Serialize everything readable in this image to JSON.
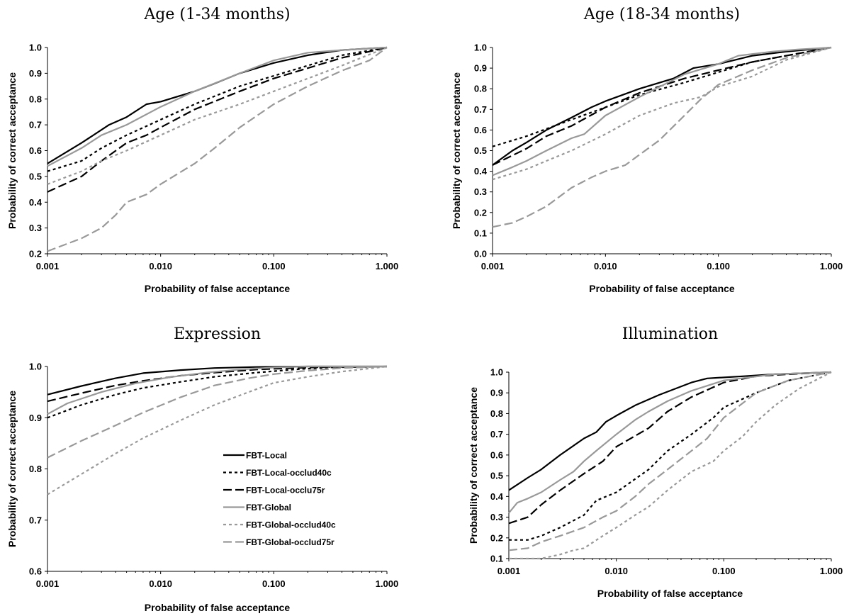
{
  "styles": {
    "FBT-Local": {
      "color": "#000000",
      "dash": ""
    },
    "FBT-Local-occlud40c": {
      "color": "#000000",
      "dash": "4,4"
    },
    "FBT-Local-occlu75r": {
      "color": "#000000",
      "dash": "12,5"
    },
    "FBT-Global": {
      "color": "#999999",
      "dash": ""
    },
    "FBT-Global-occlud40c": {
      "color": "#999999",
      "dash": "4,4"
    },
    "FBT-Global-occlud75r": {
      "color": "#999999",
      "dash": "12,5"
    }
  },
  "chart_data": [
    {
      "type": "line",
      "title": "Age (1-34 months)",
      "xlabel": "Probability of false acceptance",
      "ylabel": "Probability of correct acceptance",
      "xscale": "log",
      "xlim": [
        0.001,
        1.0
      ],
      "ylim": [
        0.2,
        1.0
      ],
      "xticks": [
        "0.001",
        "0.010",
        "0.100",
        "1.000"
      ],
      "yticks": [
        "0.2",
        "0.3",
        "0.4",
        "0.5",
        "0.6",
        "0.7",
        "0.8",
        "0.9",
        "1.0"
      ],
      "series": [
        {
          "name": "FBT-Local",
          "x": [
            0.001,
            0.002,
            0.0035,
            0.005,
            0.0075,
            0.01,
            0.02,
            0.03,
            0.05,
            0.1,
            0.2,
            0.4,
            1.0
          ],
          "y": [
            0.55,
            0.63,
            0.7,
            0.73,
            0.78,
            0.79,
            0.83,
            0.86,
            0.9,
            0.94,
            0.97,
            0.99,
            1.0
          ]
        },
        {
          "name": "FBT-Local-occlud40c",
          "x": [
            0.001,
            0.002,
            0.003,
            0.005,
            0.01,
            0.02,
            0.05,
            0.1,
            0.2,
            0.4,
            1.0
          ],
          "y": [
            0.52,
            0.56,
            0.61,
            0.66,
            0.72,
            0.78,
            0.85,
            0.89,
            0.93,
            0.97,
            1.0
          ]
        },
        {
          "name": "FBT-Local-occlu75r",
          "x": [
            0.001,
            0.002,
            0.003,
            0.005,
            0.0075,
            0.01,
            0.02,
            0.05,
            0.1,
            0.2,
            0.4,
            1.0
          ],
          "y": [
            0.44,
            0.5,
            0.56,
            0.63,
            0.66,
            0.69,
            0.76,
            0.83,
            0.88,
            0.92,
            0.96,
            1.0
          ]
        },
        {
          "name": "FBT-Global",
          "x": [
            0.001,
            0.002,
            0.003,
            0.005,
            0.01,
            0.02,
            0.05,
            0.1,
            0.2,
            0.4,
            1.0
          ],
          "y": [
            0.54,
            0.61,
            0.66,
            0.7,
            0.77,
            0.83,
            0.9,
            0.95,
            0.98,
            0.99,
            1.0
          ]
        },
        {
          "name": "FBT-Global-occlud40c",
          "x": [
            0.001,
            0.002,
            0.003,
            0.005,
            0.01,
            0.02,
            0.05,
            0.1,
            0.2,
            0.4,
            1.0
          ],
          "y": [
            0.47,
            0.52,
            0.56,
            0.6,
            0.66,
            0.72,
            0.78,
            0.83,
            0.88,
            0.93,
            1.0
          ]
        },
        {
          "name": "FBT-Global-occlud75r",
          "x": [
            0.001,
            0.002,
            0.003,
            0.004,
            0.005,
            0.0075,
            0.01,
            0.02,
            0.03,
            0.05,
            0.1,
            0.2,
            0.4,
            0.7,
            1.0
          ],
          "y": [
            0.21,
            0.26,
            0.3,
            0.35,
            0.4,
            0.43,
            0.47,
            0.55,
            0.61,
            0.69,
            0.78,
            0.85,
            0.91,
            0.95,
            1.0
          ]
        }
      ]
    },
    {
      "type": "line",
      "title": "Age (18-34 months)",
      "xlabel": "Probability of false acceptance",
      "ylabel": "Probability of correct acceptance",
      "xscale": "log",
      "xlim": [
        0.001,
        1.0
      ],
      "ylim": [
        0.0,
        1.0
      ],
      "xticks": [
        "0.001",
        "0.010",
        "0.100",
        "1.000"
      ],
      "yticks": [
        "0.0",
        "0.1",
        "0.2",
        "0.3",
        "0.4",
        "0.5",
        "0.6",
        "0.7",
        "0.8",
        "0.9",
        "1.0"
      ],
      "series": [
        {
          "name": "FBT-Local",
          "x": [
            0.001,
            0.0015,
            0.002,
            0.003,
            0.005,
            0.0075,
            0.01,
            0.02,
            0.04,
            0.06,
            0.1,
            0.2,
            0.4,
            1.0
          ],
          "y": [
            0.43,
            0.5,
            0.54,
            0.6,
            0.66,
            0.71,
            0.74,
            0.8,
            0.85,
            0.9,
            0.92,
            0.96,
            0.98,
            1.0
          ]
        },
        {
          "name": "FBT-Local-occlud40c",
          "x": [
            0.001,
            0.002,
            0.005,
            0.01,
            0.02,
            0.05,
            0.1,
            0.2,
            0.5,
            1.0
          ],
          "y": [
            0.52,
            0.57,
            0.65,
            0.71,
            0.77,
            0.83,
            0.88,
            0.93,
            0.97,
            1.0
          ]
        },
        {
          "name": "FBT-Local-occlu75r",
          "x": [
            0.001,
            0.002,
            0.003,
            0.005,
            0.01,
            0.02,
            0.05,
            0.1,
            0.2,
            0.5,
            1.0
          ],
          "y": [
            0.43,
            0.51,
            0.57,
            0.62,
            0.71,
            0.78,
            0.85,
            0.89,
            0.93,
            0.97,
            1.0
          ]
        },
        {
          "name": "FBT-Global",
          "x": [
            0.001,
            0.0015,
            0.002,
            0.003,
            0.005,
            0.0065,
            0.01,
            0.02,
            0.05,
            0.1,
            0.15,
            0.3,
            0.5,
            1.0
          ],
          "y": [
            0.38,
            0.42,
            0.45,
            0.5,
            0.56,
            0.58,
            0.67,
            0.76,
            0.87,
            0.92,
            0.96,
            0.98,
            0.99,
            1.0
          ]
        },
        {
          "name": "FBT-Global-occlud40c",
          "x": [
            0.001,
            0.002,
            0.003,
            0.005,
            0.01,
            0.02,
            0.04,
            0.07,
            0.1,
            0.2,
            0.4,
            1.0
          ],
          "y": [
            0.36,
            0.41,
            0.45,
            0.5,
            0.58,
            0.67,
            0.73,
            0.76,
            0.81,
            0.86,
            0.94,
            1.0
          ]
        },
        {
          "name": "FBT-Global-occlud75r",
          "x": [
            0.001,
            0.0015,
            0.002,
            0.003,
            0.005,
            0.0075,
            0.01,
            0.015,
            0.02,
            0.03,
            0.05,
            0.07,
            0.1,
            0.2,
            0.4,
            1.0
          ],
          "y": [
            0.13,
            0.15,
            0.18,
            0.23,
            0.32,
            0.37,
            0.4,
            0.43,
            0.48,
            0.55,
            0.67,
            0.75,
            0.82,
            0.89,
            0.95,
            1.0
          ]
        }
      ]
    },
    {
      "type": "line",
      "title": "Expression",
      "xlabel": "Probability of false acceptance",
      "ylabel": "Probability of correct acceptance",
      "xscale": "log",
      "xlim": [
        0.001,
        1.0
      ],
      "ylim": [
        0.6,
        1.0
      ],
      "xticks": [
        "0.001",
        "0.010",
        "0.100",
        "1.000"
      ],
      "yticks": [
        "0.6",
        "0.7",
        "0.8",
        "0.9",
        "1.0"
      ],
      "series": [
        {
          "name": "FBT-Local",
          "x": [
            0.001,
            0.002,
            0.004,
            0.007,
            0.015,
            0.03,
            0.07,
            0.2,
            1.0
          ],
          "y": [
            0.945,
            0.962,
            0.977,
            0.987,
            0.993,
            0.997,
            0.999,
            1.0,
            1.0
          ]
        },
        {
          "name": "FBT-Local-occlud40c",
          "x": [
            0.001,
            0.002,
            0.004,
            0.007,
            0.015,
            0.03,
            0.07,
            0.15,
            0.3,
            1.0
          ],
          "y": [
            0.9,
            0.925,
            0.945,
            0.958,
            0.97,
            0.98,
            0.988,
            0.994,
            0.998,
            1.0
          ]
        },
        {
          "name": "FBT-Local-occlu75r",
          "x": [
            0.001,
            0.002,
            0.004,
            0.007,
            0.015,
            0.03,
            0.07,
            0.15,
            0.3,
            1.0
          ],
          "y": [
            0.932,
            0.948,
            0.963,
            0.972,
            0.982,
            0.988,
            0.994,
            0.997,
            0.999,
            1.0
          ]
        },
        {
          "name": "FBT-Global",
          "x": [
            0.001,
            0.0015,
            0.003,
            0.006,
            0.012,
            0.025,
            0.05,
            0.1,
            0.2,
            1.0
          ],
          "y": [
            0.907,
            0.928,
            0.95,
            0.967,
            0.979,
            0.988,
            0.994,
            0.998,
            1.0,
            1.0
          ]
        },
        {
          "name": "FBT-Global-occlud40c",
          "x": [
            0.001,
            0.002,
            0.004,
            0.007,
            0.015,
            0.03,
            0.06,
            0.1,
            0.2,
            0.4,
            1.0
          ],
          "y": [
            0.75,
            0.79,
            0.83,
            0.86,
            0.895,
            0.925,
            0.95,
            0.968,
            0.98,
            0.99,
            1.0
          ]
        },
        {
          "name": "FBT-Global-occlud75r",
          "x": [
            0.001,
            0.002,
            0.004,
            0.007,
            0.015,
            0.03,
            0.06,
            0.1,
            0.2,
            0.4,
            1.0
          ],
          "y": [
            0.822,
            0.855,
            0.885,
            0.91,
            0.94,
            0.963,
            0.977,
            0.985,
            0.992,
            0.997,
            1.0
          ]
        }
      ],
      "legend": [
        "FBT-Local",
        "FBT-Local-occlud40c",
        "FBT-Local-occlu75r",
        "FBT-Global",
        "FBT-Global-occlud40c",
        "FBT-Global-occlud75r"
      ]
    },
    {
      "type": "line",
      "title": "Illumination",
      "xlabel": "Probability of false acceptance",
      "ylabel": "Probability of correct acceptance",
      "xscale": "log",
      "xlim": [
        0.001,
        1.0
      ],
      "ylim": [
        0.1,
        1.0
      ],
      "xticks": [
        "0.001",
        "0.010",
        "0.100",
        "1.000"
      ],
      "yticks": [
        "0.1",
        "0.2",
        "0.3",
        "0.4",
        "0.5",
        "0.6",
        "0.7",
        "0.8",
        "0.9",
        "1.0"
      ],
      "series": [
        {
          "name": "FBT-Local",
          "x": [
            0.001,
            0.0015,
            0.002,
            0.003,
            0.005,
            0.0065,
            0.008,
            0.01,
            0.015,
            0.025,
            0.05,
            0.07,
            0.15,
            0.3,
            1.0
          ],
          "y": [
            0.43,
            0.49,
            0.53,
            0.6,
            0.68,
            0.71,
            0.76,
            0.79,
            0.84,
            0.89,
            0.95,
            0.97,
            0.98,
            0.99,
            1.0
          ]
        },
        {
          "name": "FBT-Local-occlud40c",
          "x": [
            0.001,
            0.0015,
            0.002,
            0.003,
            0.005,
            0.0065,
            0.01,
            0.02,
            0.03,
            0.05,
            0.08,
            0.1,
            0.2,
            0.4,
            1.0
          ],
          "y": [
            0.19,
            0.19,
            0.21,
            0.25,
            0.31,
            0.38,
            0.42,
            0.53,
            0.62,
            0.7,
            0.78,
            0.83,
            0.9,
            0.96,
            1.0
          ]
        },
        {
          "name": "FBT-Local-occlu75r",
          "x": [
            0.001,
            0.0015,
            0.002,
            0.003,
            0.005,
            0.0075,
            0.01,
            0.02,
            0.03,
            0.05,
            0.1,
            0.2,
            0.4,
            1.0
          ],
          "y": [
            0.27,
            0.3,
            0.36,
            0.43,
            0.51,
            0.57,
            0.64,
            0.73,
            0.81,
            0.88,
            0.95,
            0.98,
            0.99,
            1.0
          ]
        },
        {
          "name": "FBT-Global",
          "x": [
            0.001,
            0.0012,
            0.0015,
            0.002,
            0.003,
            0.004,
            0.005,
            0.0065,
            0.01,
            0.015,
            0.02,
            0.03,
            0.05,
            0.1,
            0.3,
            1.0
          ],
          "y": [
            0.32,
            0.37,
            0.39,
            0.42,
            0.48,
            0.52,
            0.57,
            0.62,
            0.7,
            0.77,
            0.81,
            0.86,
            0.91,
            0.96,
            0.99,
            1.0
          ]
        },
        {
          "name": "FBT-Global-occlud40c",
          "x": [
            0.001,
            0.002,
            0.003,
            0.004,
            0.005,
            0.0075,
            0.01,
            0.015,
            0.02,
            0.03,
            0.05,
            0.08,
            0.1,
            0.15,
            0.2,
            0.3,
            0.5,
            1.0
          ],
          "y": [
            0.1,
            0.1,
            0.12,
            0.14,
            0.15,
            0.21,
            0.25,
            0.31,
            0.35,
            0.43,
            0.52,
            0.57,
            0.62,
            0.69,
            0.76,
            0.84,
            0.92,
            1.0
          ]
        },
        {
          "name": "FBT-Global-occlud75r",
          "x": [
            0.001,
            0.0015,
            0.002,
            0.003,
            0.005,
            0.0075,
            0.01,
            0.015,
            0.02,
            0.03,
            0.05,
            0.07,
            0.1,
            0.2,
            0.4,
            1.0
          ],
          "y": [
            0.14,
            0.15,
            0.18,
            0.21,
            0.25,
            0.3,
            0.33,
            0.4,
            0.46,
            0.53,
            0.62,
            0.68,
            0.78,
            0.9,
            0.96,
            1.0
          ]
        }
      ]
    }
  ]
}
